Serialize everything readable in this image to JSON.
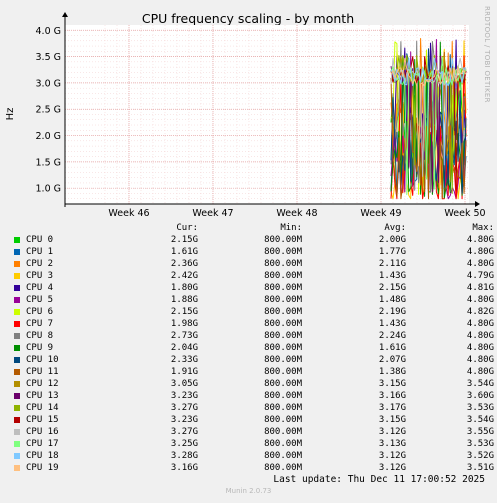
{
  "side_label": "RRDTOOL / TOBI OETIKER",
  "legend_header": {
    "cur": "Cur:",
    "min": "Min:",
    "avg": "Avg:",
    "max": "Max:"
  },
  "last_update": "Last update: Thu Dec 11 17:00:52 2025",
  "footer": "Munin 2.0.73",
  "colors": {
    "background": "#f0f0f0",
    "plot_area": "#ffffff",
    "grid_major": "#e3a0a0",
    "grid_minor": "#f2cfcf",
    "axis": "#000000"
  },
  "chart_data": {
    "type": "line",
    "title": "CPU frequency scaling - by month",
    "ylabel": "Hz",
    "xlabel": "",
    "yticks": [
      "1.0 G",
      "1.5 G",
      "2.0 G",
      "2.5 G",
      "3.0 G",
      "3.5 G",
      "4.0 G"
    ],
    "ytick_values": [
      1.0,
      1.5,
      2.0,
      2.5,
      3.0,
      3.5,
      4.0
    ],
    "ylim": [
      0.7,
      4.1
    ],
    "xticks": [
      "Week 46",
      "Week 47",
      "Week 48",
      "Week 49",
      "Week 50"
    ],
    "grid": true,
    "data_start_week": "Week 49",
    "series": [
      {
        "name": "CPU 0",
        "color": "#00cc00",
        "cur": "2.15G",
        "min": "800.00M",
        "avg": "2.00G",
        "max": "4.80G"
      },
      {
        "name": "CPU 1",
        "color": "#0066b3",
        "cur": "1.61G",
        "min": "800.00M",
        "avg": "1.77G",
        "max": "4.80G"
      },
      {
        "name": "CPU 2",
        "color": "#ff8000",
        "cur": "2.36G",
        "min": "800.00M",
        "avg": "2.11G",
        "max": "4.80G"
      },
      {
        "name": "CPU 3",
        "color": "#ffcc00",
        "cur": "2.42G",
        "min": "800.00M",
        "avg": "1.43G",
        "max": "4.79G"
      },
      {
        "name": "CPU 4",
        "color": "#330099",
        "cur": "1.80G",
        "min": "800.00M",
        "avg": "2.15G",
        "max": "4.81G"
      },
      {
        "name": "CPU 5",
        "color": "#990099",
        "cur": "1.88G",
        "min": "800.00M",
        "avg": "1.48G",
        "max": "4.80G"
      },
      {
        "name": "CPU 6",
        "color": "#ccff00",
        "cur": "2.15G",
        "min": "800.00M",
        "avg": "2.19G",
        "max": "4.82G"
      },
      {
        "name": "CPU 7",
        "color": "#ff0000",
        "cur": "1.98G",
        "min": "800.00M",
        "avg": "1.43G",
        "max": "4.80G"
      },
      {
        "name": "CPU 8",
        "color": "#808080",
        "cur": "2.73G",
        "min": "800.00M",
        "avg": "2.24G",
        "max": "4.80G"
      },
      {
        "name": "CPU 9",
        "color": "#008f00",
        "cur": "2.04G",
        "min": "800.00M",
        "avg": "1.61G",
        "max": "4.80G"
      },
      {
        "name": "CPU 10",
        "color": "#00487d",
        "cur": "2.33G",
        "min": "800.00M",
        "avg": "2.07G",
        "max": "4.80G"
      },
      {
        "name": "CPU 11",
        "color": "#b35a00",
        "cur": "1.91G",
        "min": "800.00M",
        "avg": "1.38G",
        "max": "4.80G"
      },
      {
        "name": "CPU 12",
        "color": "#b38f00",
        "cur": "3.05G",
        "min": "800.00M",
        "avg": "3.15G",
        "max": "3.54G"
      },
      {
        "name": "CPU 13",
        "color": "#6b006b",
        "cur": "3.23G",
        "min": "800.00M",
        "avg": "3.16G",
        "max": "3.60G"
      },
      {
        "name": "CPU 14",
        "color": "#8fb300",
        "cur": "3.27G",
        "min": "800.00M",
        "avg": "3.17G",
        "max": "3.53G"
      },
      {
        "name": "CPU 15",
        "color": "#b30000",
        "cur": "3.23G",
        "min": "800.00M",
        "avg": "3.15G",
        "max": "3.54G"
      },
      {
        "name": "CPU 16",
        "color": "#bebebe",
        "cur": "3.27G",
        "min": "800.00M",
        "avg": "3.12G",
        "max": "3.55G"
      },
      {
        "name": "CPU 17",
        "color": "#80ff80",
        "cur": "3.25G",
        "min": "800.00M",
        "avg": "3.13G",
        "max": "3.53G"
      },
      {
        "name": "CPU 18",
        "color": "#80c9ff",
        "cur": "3.28G",
        "min": "800.00M",
        "avg": "3.12G",
        "max": "3.52G"
      },
      {
        "name": "CPU 19",
        "color": "#ffc080",
        "cur": "3.16G",
        "min": "800.00M",
        "avg": "3.12G",
        "max": "3.51G"
      }
    ]
  }
}
